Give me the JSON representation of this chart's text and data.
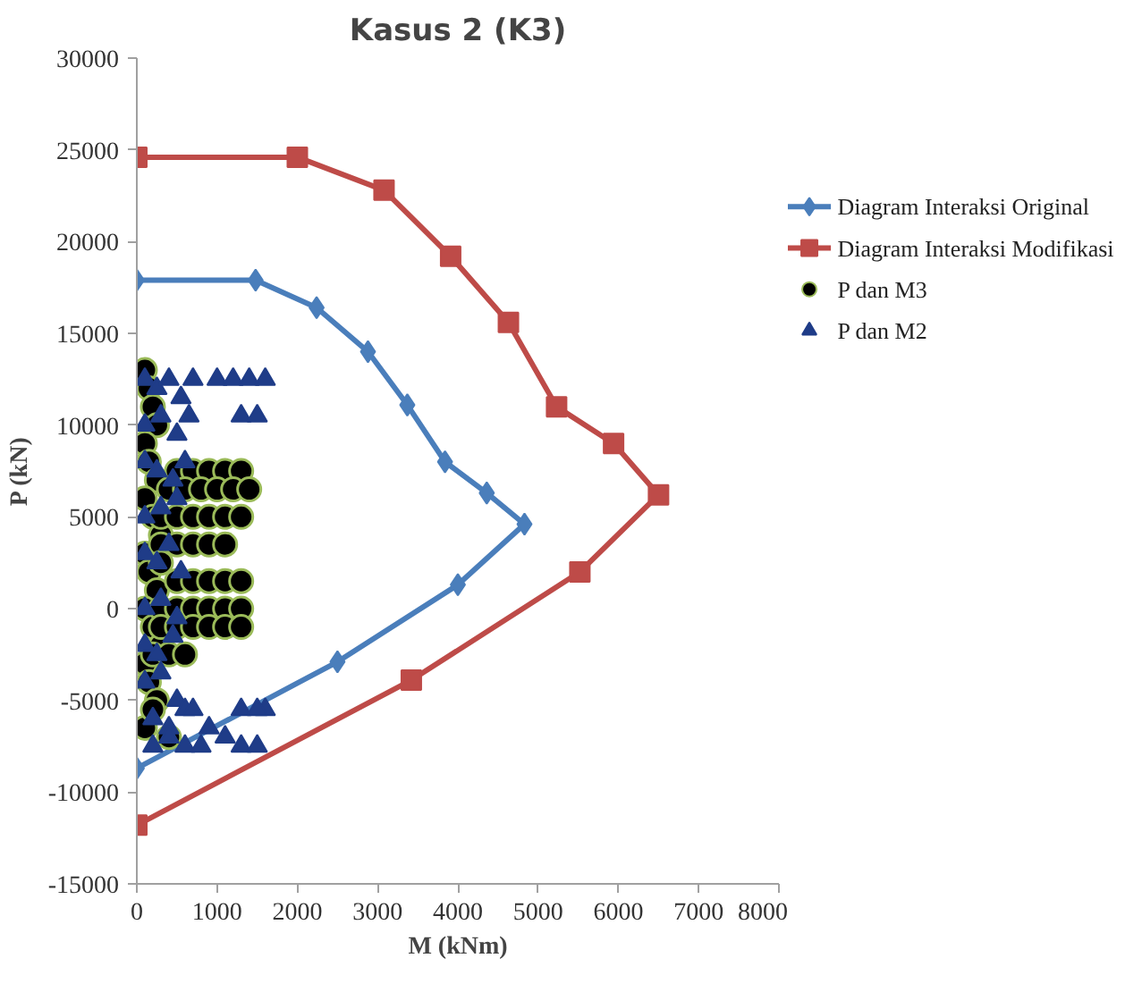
{
  "chart_data": {
    "type": "line",
    "title": "Kasus 2 (K3)",
    "xlabel": "M (kNm)",
    "ylabel": "P (kN)",
    "xlim": [
      0,
      8000
    ],
    "xticks": [
      0,
      1000,
      2000,
      3000,
      4000,
      5000,
      6000,
      7000,
      8000
    ],
    "ylim": [
      -15000,
      30000
    ],
    "yticks": [
      -15000,
      -10000,
      -5000,
      0,
      5000,
      10000,
      15000,
      20000,
      25000,
      30000
    ],
    "grid": false,
    "legend": "right",
    "line_style": "solid",
    "series": [
      {
        "name": "Diagram Interaksi Original",
        "marker": "diamond",
        "color": "#4a7ebb",
        "x": [
          0,
          1480,
          2240,
          2880,
          3370,
          3840,
          4360,
          4830,
          4000,
          2500,
          0
        ],
        "values": [
          17900,
          17900,
          16400,
          14000,
          11100,
          8000,
          6300,
          4600,
          1300,
          -2900,
          -8700
        ]
      },
      {
        "name": "Diagram Interaksi Modifikasi",
        "marker": "square",
        "color": "#be4b48",
        "x": [
          0,
          2000,
          3080,
          3910,
          4630,
          5230,
          5940,
          6500,
          5520,
          3420,
          0
        ],
        "values": [
          24600,
          24600,
          22800,
          19200,
          15600,
          11000,
          9000,
          6200,
          2000,
          -3900,
          -11800
        ]
      },
      {
        "name": "P dan M3",
        "type": "scatter",
        "marker": "circle",
        "color": "#000000",
        "x": [
          100,
          150,
          200,
          250,
          100,
          150,
          250,
          100,
          200,
          300,
          100,
          150,
          250,
          100,
          200,
          300,
          100,
          150,
          250,
          500,
          700,
          900,
          1100,
          1300,
          400,
          600,
          800,
          1000,
          1200,
          1400,
          300,
          500,
          700,
          900,
          1100,
          1300,
          300,
          500,
          700,
          900,
          1100,
          300,
          500,
          700,
          900,
          1100,
          1300,
          300,
          500,
          700,
          900,
          1100,
          1300,
          300,
          500,
          700,
          900,
          1100,
          1300,
          200,
          400,
          600,
          100,
          200,
          400
        ],
        "values": [
          13000,
          12000,
          11000,
          10000,
          9000,
          8000,
          7000,
          6000,
          5000,
          4000,
          3000,
          2000,
          1000,
          0,
          -1000,
          -2000,
          -3000,
          -4000,
          -5000,
          7500,
          7500,
          7500,
          7500,
          7500,
          6500,
          6500,
          6500,
          6500,
          6500,
          6500,
          5000,
          5000,
          5000,
          5000,
          5000,
          5000,
          3500,
          3500,
          3500,
          3500,
          3500,
          2500,
          1500,
          1500,
          1500,
          1500,
          1500,
          0,
          0,
          0,
          0,
          0,
          0,
          -1000,
          -1000,
          -1000,
          -1000,
          -1000,
          -1000,
          -2500,
          -2500,
          -2500,
          -6500,
          -5500,
          -7000
        ]
      },
      {
        "name": "P dan M2",
        "type": "scatter",
        "marker": "triangle",
        "color": "#1f3c88",
        "x": [
          100,
          250,
          400,
          550,
          700,
          100,
          300,
          500,
          650,
          100,
          250,
          450,
          600,
          100,
          300,
          500,
          100,
          250,
          400,
          550,
          100,
          300,
          500,
          100,
          250,
          450,
          100,
          300,
          500,
          200,
          400,
          600,
          200,
          400,
          600,
          800,
          1100,
          1300,
          1500,
          1600,
          1300,
          1500,
          1000,
          1200,
          1400,
          1600,
          1300,
          1500,
          900,
          700
        ],
        "values": [
          12500,
          12000,
          12500,
          11500,
          12500,
          10000,
          10500,
          9500,
          10500,
          8000,
          7500,
          7000,
          8000,
          5000,
          5500,
          6000,
          3000,
          2500,
          3500,
          2000,
          0,
          500,
          -500,
          -2000,
          -2500,
          -1500,
          -4000,
          -3500,
          -5000,
          -6000,
          -6500,
          -5500,
          -7500,
          -7000,
          -7500,
          -7500,
          -7000,
          -7500,
          -7500,
          -5500,
          -5500,
          -5500,
          12500,
          12500,
          12500,
          12500,
          10500,
          10500,
          -6500,
          -5500
        ]
      }
    ]
  }
}
